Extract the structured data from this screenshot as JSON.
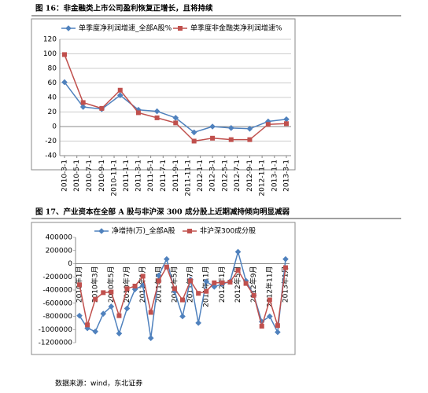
{
  "chart_data": [
    {
      "type": "line",
      "title": "图 16：非金融类上市公司盈利恢复正增长，且将持续",
      "x": [
        "2010-3-1",
        "2010-6-1",
        "2010-9-1",
        "2010-12-1",
        "2011-3-1",
        "2011-6-1",
        "2011-9-1",
        "2011-12-1",
        "2012-3-1",
        "2012-6-1",
        "2012-9-1",
        "2012-12-1",
        "2013-3-1"
      ],
      "xticks": [
        "2010-3-1",
        "2010-5-1",
        "2010-7-1",
        "2010-9-1",
        "2010-11-1",
        "2011-1-1",
        "2011-3-1",
        "2011-5-1",
        "2011-7-1",
        "2011-9-1",
        "2011-11-1",
        "2012-1-1",
        "2012-3-1",
        "2012-5-1",
        "2012-7-1",
        "2012-9-1",
        "2012-11-1",
        "2013-1-1",
        "2013-3-1"
      ],
      "series": [
        {
          "name": "单季度净利润增速_全部A股%",
          "color": "#4f81bd",
          "marker": "diamond",
          "values": [
            61,
            27,
            24,
            43,
            23,
            21,
            12,
            -8,
            0,
            -2,
            -3,
            7,
            10
          ]
        },
        {
          "name": "单季度非金融类净利润增速%",
          "color": "#c0504d",
          "marker": "square",
          "values": [
            99,
            33,
            25,
            50,
            19,
            12,
            5,
            -20,
            -16,
            -18,
            -18,
            3,
            4
          ]
        }
      ],
      "ylim": [
        -40,
        120
      ],
      "yticks": [
        -40,
        -20,
        0,
        20,
        40,
        60,
        80,
        100,
        120
      ],
      "grid": true
    },
    {
      "type": "line",
      "title": "图 17、产业资本在全部 A 股与非沪深 300 成分股上近期减持倾向明显减弱",
      "categories": [
        "2010年1月",
        null,
        "2010年3月",
        null,
        "2010年5月",
        null,
        "2010年7月",
        null,
        "2011年1月",
        null,
        "2011年3月",
        null,
        "2011年5月",
        null,
        "2011年7月",
        null,
        "2011年11月",
        null,
        "2012年1月",
        null,
        "2012年5月",
        null,
        "2012年9月",
        null,
        "2012年11月",
        null,
        "2013年1月"
      ],
      "series": [
        {
          "name": "净增持(万)_全部A股",
          "color": "#4f81bd",
          "marker": "diamond",
          "values": [
            -790000,
            -980000,
            -1030000,
            -760000,
            -650000,
            -1060000,
            -680000,
            -390000,
            -330000,
            -1130000,
            -180000,
            70000,
            -420000,
            -800000,
            -240000,
            -900000,
            -270000,
            -350000,
            -310000,
            -270000,
            180000,
            -260000,
            -480000,
            -880000,
            -800000,
            -1040000,
            70000
          ]
        },
        {
          "name": "非沪深300成分股",
          "color": "#c0504d",
          "marker": "square",
          "values": [
            -320000,
            -930000,
            -540000,
            -440000,
            -430000,
            -790000,
            -380000,
            -340000,
            -190000,
            -740000,
            -260000,
            -50000,
            -380000,
            -550000,
            -260000,
            -450000,
            -420000,
            -290000,
            -290000,
            -280000,
            -100000,
            -300000,
            -480000,
            -950000,
            -550000,
            -940000,
            -60000
          ]
        }
      ],
      "ylim": [
        -1200000,
        400000
      ],
      "yticks": [
        -1200000,
        -1000000,
        -800000,
        -600000,
        -400000,
        -200000,
        0,
        200000,
        400000
      ],
      "grid": false
    }
  ],
  "source": "数据来源：wind，东北证券"
}
